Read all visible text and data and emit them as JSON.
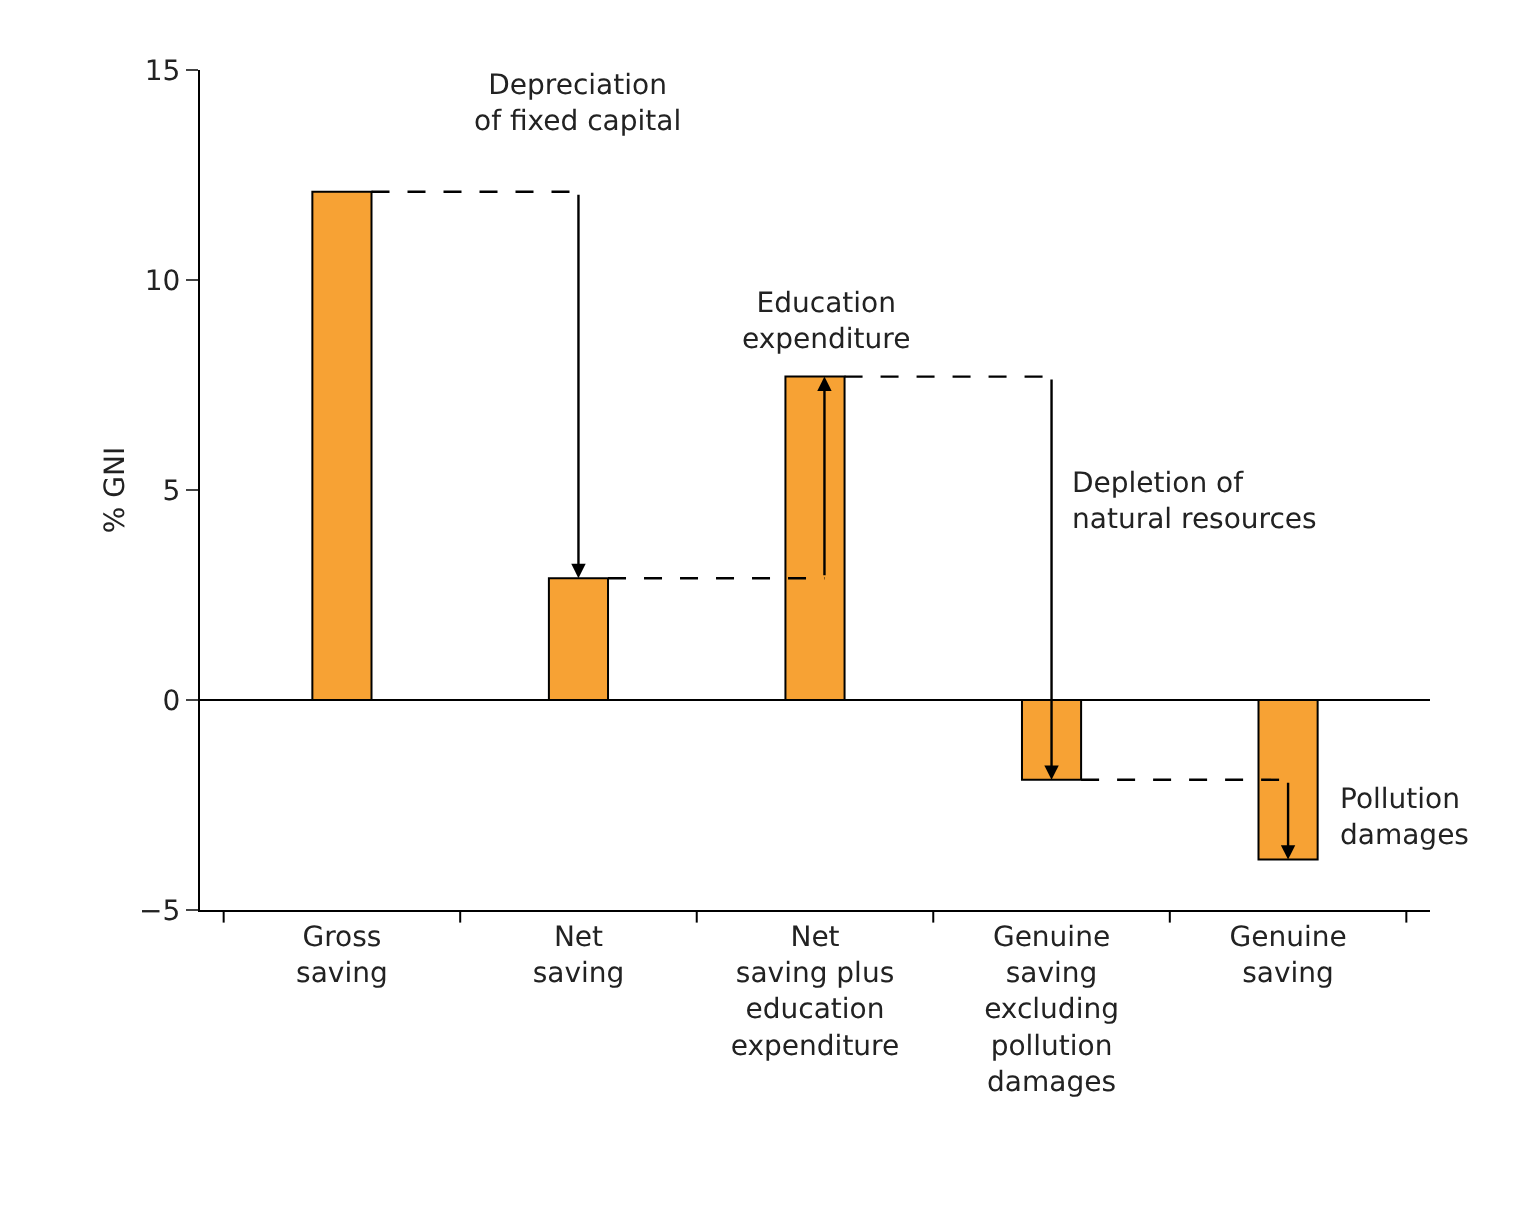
{
  "chart_data": {
    "type": "bar",
    "ylabel": "% GNI",
    "categories": [
      "Gross\nsaving",
      "Net\nsaving",
      "Net\nsaving plus\neducation\nexpenditure",
      "Genuine\nsaving\nexcluding\npollution\ndamages",
      "Genuine\nsaving"
    ],
    "values": [
      12.1,
      2.9,
      7.7,
      -1.9,
      -3.8
    ],
    "color": "#f7a234",
    "ylim": [
      -5,
      15
    ],
    "yticks": [
      {
        "value": -5,
        "label": "−5"
      },
      0,
      5,
      10,
      15
    ],
    "legend": false,
    "annotations": [
      "Depreciation\nof fixed capital",
      "Education\nexpenditure",
      "Depletion of\nnatural resources",
      "Pollution\ndamages"
    ]
  }
}
